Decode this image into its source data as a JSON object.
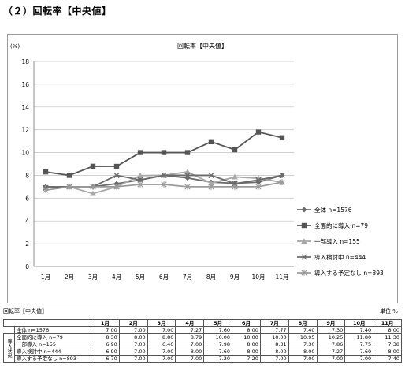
{
  "page": {
    "section_title": "（２）回転率【中央値】"
  },
  "chart_data": {
    "type": "line",
    "title": "回転率【中央値】",
    "ylabel": "(%)",
    "xlabel": "",
    "ylim": [
      0,
      18
    ],
    "yticks": [
      0,
      2,
      4,
      6,
      8,
      10,
      12,
      14,
      16,
      18
    ],
    "grid": true,
    "legend_position": "right",
    "categories": [
      "1月",
      "2月",
      "3月",
      "4月",
      "5月",
      "6月",
      "7月",
      "8月",
      "9月",
      "10月",
      "11月"
    ],
    "series": [
      {
        "name": "全体 n=1576",
        "color": "#6b6b6b",
        "marker": "diamond",
        "values": [
          7.0,
          7.0,
          7.0,
          7.27,
          7.6,
          8.0,
          7.77,
          7.4,
          7.3,
          7.4,
          8.0
        ]
      },
      {
        "name": "全面的に導入 n=79",
        "color": "#555555",
        "marker": "square",
        "values": [
          8.3,
          8.0,
          8.8,
          8.79,
          10.0,
          10.0,
          10.0,
          10.95,
          10.25,
          11.8,
          11.3
        ]
      },
      {
        "name": "一部導入 n=155",
        "color": "#a8a8a8",
        "marker": "triangle",
        "values": [
          6.9,
          7.0,
          6.4,
          7.0,
          7.98,
          8.0,
          8.31,
          7.3,
          7.86,
          7.75,
          7.38
        ]
      },
      {
        "name": "導入検討中 n=444",
        "color": "#6a6a6a",
        "marker": "x",
        "values": [
          6.9,
          7.0,
          7.0,
          8.0,
          7.6,
          8.0,
          8.0,
          8.0,
          7.27,
          7.6,
          8.0
        ]
      },
      {
        "name": "導入する予定なし n=893",
        "color": "#9a9a9a",
        "marker": "star",
        "values": [
          6.7,
          7.0,
          7.0,
          7.0,
          7.2,
          7.2,
          7.0,
          7.0,
          7.0,
          7.0,
          7.4
        ]
      }
    ]
  },
  "table": {
    "caption": "回転率【中央値】",
    "unit": "単位 %",
    "headers": [
      "1月",
      "2月",
      "3月",
      "4月",
      "5月",
      "6月",
      "7月",
      "8月",
      "9月",
      "10月",
      "11月"
    ],
    "group_label": "導入状況",
    "rows": [
      {
        "label": "全体 n=1576",
        "values": [
          "7.00",
          "7.00",
          "7.00",
          "7.27",
          "7.60",
          "8.00",
          "7.77",
          "7.40",
          "7.30",
          "7.40",
          "8.00"
        ]
      },
      {
        "label": "全面的に導入 n=79",
        "values": [
          "8.30",
          "8.00",
          "8.80",
          "8.79",
          "10.00",
          "10.00",
          "10.00",
          "10.95",
          "10.25",
          "11.80",
          "11.30"
        ]
      },
      {
        "label": "一部導入 n=155",
        "values": [
          "6.90",
          "7.00",
          "6.40",
          "7.00",
          "7.98",
          "8.00",
          "8.31",
          "7.30",
          "7.86",
          "7.75",
          "7.38"
        ]
      },
      {
        "label": "導入検討中 n=444",
        "values": [
          "6.90",
          "7.00",
          "7.00",
          "8.00",
          "7.60",
          "8.00",
          "8.00",
          "8.00",
          "7.27",
          "7.60",
          "8.00"
        ]
      },
      {
        "label": "導入する予定なし n=893",
        "values": [
          "6.70",
          "7.00",
          "7.00",
          "7.00",
          "7.20",
          "7.20",
          "7.00",
          "7.00",
          "7.00",
          "7.00",
          "7.40"
        ]
      }
    ]
  }
}
